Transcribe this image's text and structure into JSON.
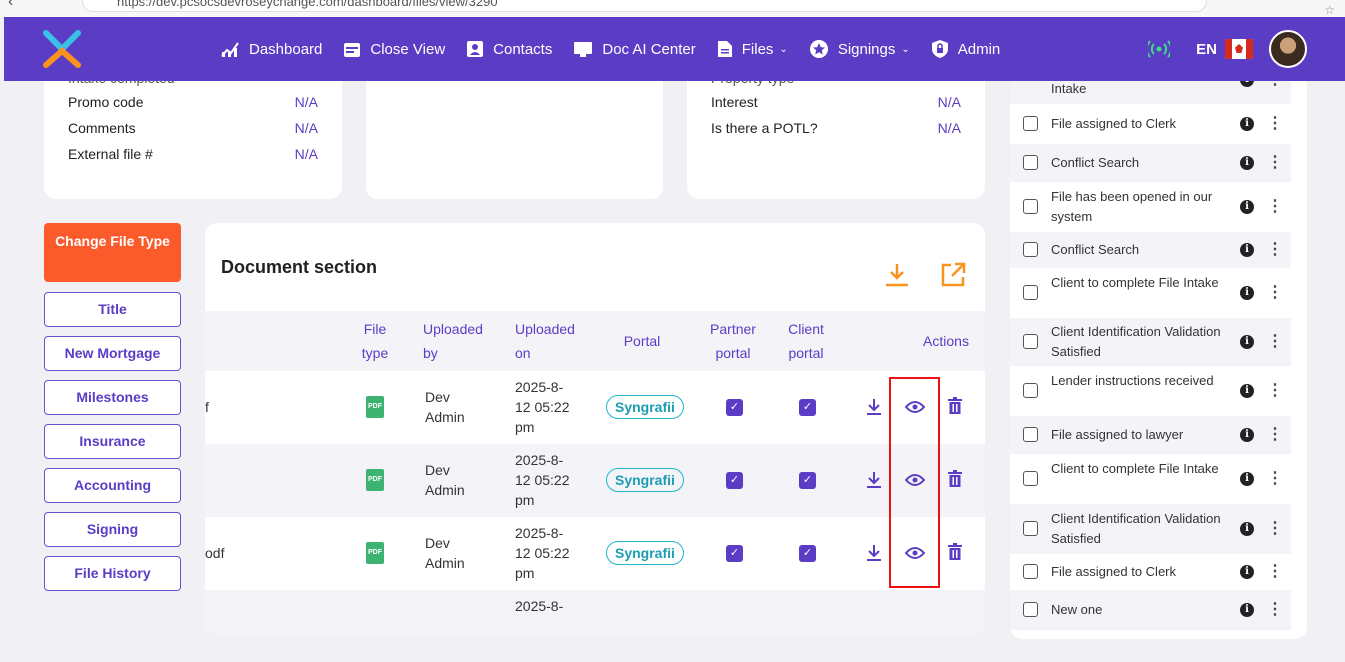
{
  "browser": {
    "url": "https://dev.pcsocsdevroseychange.com/dashboard/files/view/3290"
  },
  "nav": {
    "items": [
      {
        "label": "Dashboard",
        "icon": "chart-icon"
      },
      {
        "label": "Close View",
        "icon": "calendar-icon"
      },
      {
        "label": "Contacts",
        "icon": "contact-icon"
      },
      {
        "label": "Doc AI Center",
        "icon": "monitor-icon"
      },
      {
        "label": "Files",
        "icon": "file-icon",
        "dropdown": true
      },
      {
        "label": "Signings",
        "icon": "star-badge-icon",
        "dropdown": true
      },
      {
        "label": "Admin",
        "icon": "shield-lock-icon"
      }
    ],
    "lang": "EN"
  },
  "card1": {
    "partial_label": "Intake completed",
    "rows": [
      {
        "label": "Promo code",
        "value": "N/A"
      },
      {
        "label": "Comments",
        "value": "N/A"
      },
      {
        "label": "External file #",
        "value": "N/A"
      }
    ]
  },
  "card3": {
    "partial_label": "Property type",
    "rows": [
      {
        "label": "Interest",
        "value": "N/A"
      },
      {
        "label": "Is there a POTL?",
        "value": "N/A"
      }
    ]
  },
  "side": {
    "change_file_type": "Change File Type",
    "buttons": [
      "Title",
      "New Mortgage",
      "Milestones",
      "Insurance",
      "Accounting",
      "Signing",
      "File History"
    ]
  },
  "documents": {
    "title": "Document section",
    "headers": {
      "file_type": "File type",
      "uploaded_by": "Uploaded by",
      "uploaded_on": "Uploaded on",
      "portal": "Portal",
      "partner_portal": "Partner portal",
      "client_portal": "Client portal",
      "actions": "Actions"
    },
    "rows": [
      {
        "name_tail": "f",
        "file_type": "PDF",
        "by": "Dev Admin",
        "on": "2025-8-12 05:22 pm",
        "portal": "Syngrafii"
      },
      {
        "name_tail": "",
        "file_type": "PDF",
        "by": "Dev Admin",
        "on": "2025-8-12 05:22 pm",
        "portal": "Syngrafii"
      },
      {
        "name_tail": "odf",
        "file_type": "PDF",
        "by": "Dev Admin",
        "on": "2025-8-12 05:22 pm",
        "portal": "Syngrafii"
      },
      {
        "name_tail": "",
        "file_type": "",
        "by": "",
        "on": "2025-8-",
        "portal": ""
      }
    ]
  },
  "checklist": [
    "Intake",
    "File assigned to Clerk",
    "Conflict Search",
    "File has been opened in our system",
    "Conflict Search",
    "Client to complete File Intake",
    "Client Identification Validation Satisfied",
    "Lender instructions received",
    "File assigned to lawyer",
    "Client to complete File Intake",
    "Client Identification Validation Satisfied",
    "File assigned to Clerk",
    "New one"
  ],
  "colors": {
    "brand": "#5b3cc4",
    "accent": "#fb5a2b",
    "teal": "#1fb6c9"
  }
}
